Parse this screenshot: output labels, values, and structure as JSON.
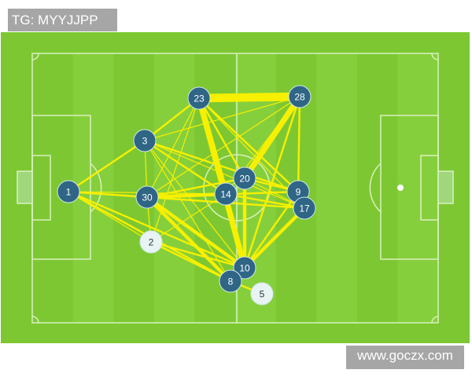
{
  "watermark_top": "TG: MYYJJPP",
  "watermark_bottom": "www.goczx.com",
  "colors": {
    "pitch": "#7dc832",
    "stripe": "#86cf3c",
    "lines": "#d8f0c0",
    "pass_line": "#f7f000",
    "player_fill": "#2f6585",
    "sub_fill": "#e8f3f4"
  },
  "players": [
    {
      "number": "1",
      "style": "starter"
    },
    {
      "number": "3",
      "style": "starter"
    },
    {
      "number": "23",
      "style": "starter"
    },
    {
      "number": "28",
      "style": "starter"
    },
    {
      "number": "30",
      "style": "starter"
    },
    {
      "number": "14",
      "style": "starter"
    },
    {
      "number": "20",
      "style": "starter"
    },
    {
      "number": "9",
      "style": "starter"
    },
    {
      "number": "17",
      "style": "starter"
    },
    {
      "number": "2",
      "style": "substitute"
    },
    {
      "number": "10",
      "style": "starter"
    },
    {
      "number": "8",
      "style": "starter"
    },
    {
      "number": "5",
      "style": "substitute"
    }
  ],
  "passes": [
    [
      "23",
      "28",
      5
    ],
    [
      "23",
      "3",
      2
    ],
    [
      "23",
      "30",
      1
    ],
    [
      "23",
      "2",
      1
    ],
    [
      "23",
      "14",
      4
    ],
    [
      "23",
      "10",
      4
    ],
    [
      "23",
      "20",
      2
    ],
    [
      "23",
      "9",
      2
    ],
    [
      "23",
      "17",
      1
    ],
    [
      "28",
      "3",
      1
    ],
    [
      "28",
      "30",
      1
    ],
    [
      "28",
      "20",
      4
    ],
    [
      "28",
      "10",
      2
    ],
    [
      "28",
      "9",
      2
    ],
    [
      "28",
      "14",
      1
    ],
    [
      "3",
      "1",
      2
    ],
    [
      "3",
      "30",
      1
    ],
    [
      "3",
      "14",
      2
    ],
    [
      "3",
      "9",
      2
    ],
    [
      "3",
      "17",
      1
    ],
    [
      "3",
      "8",
      1
    ],
    [
      "3",
      "10",
      1
    ],
    [
      "1",
      "30",
      2
    ],
    [
      "1",
      "14",
      1
    ],
    [
      "1",
      "10",
      2
    ],
    [
      "1",
      "8",
      2
    ],
    [
      "1",
      "2",
      1
    ],
    [
      "30",
      "14",
      3
    ],
    [
      "30",
      "20",
      2
    ],
    [
      "30",
      "9",
      2
    ],
    [
      "30",
      "17",
      2
    ],
    [
      "30",
      "10",
      3
    ],
    [
      "30",
      "8",
      3
    ],
    [
      "30",
      "2",
      1
    ],
    [
      "14",
      "10",
      3
    ],
    [
      "14",
      "2",
      1
    ],
    [
      "14",
      "17",
      2
    ],
    [
      "14",
      "9",
      1
    ],
    [
      "20",
      "10",
      3
    ],
    [
      "20",
      "9",
      2
    ],
    [
      "20",
      "17",
      1
    ],
    [
      "9",
      "10",
      2
    ],
    [
      "17",
      "10",
      3
    ],
    [
      "17",
      "8",
      2
    ],
    [
      "2",
      "10",
      2
    ],
    [
      "2",
      "8",
      2
    ],
    [
      "8",
      "5",
      2
    ],
    [
      "10",
      "8",
      1
    ]
  ]
}
